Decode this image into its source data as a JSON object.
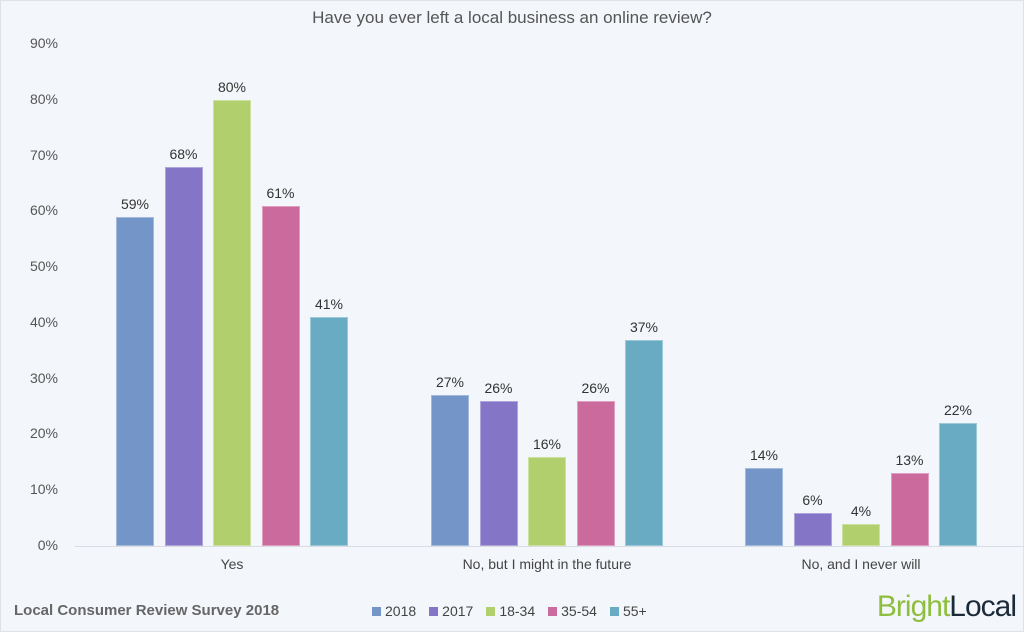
{
  "chart_data": {
    "type": "bar",
    "title": "Have you ever left a local business an online review?",
    "xlabel": "",
    "ylabel": "",
    "ylim": [
      0,
      90
    ],
    "yticks": [
      "0%",
      "10%",
      "20%",
      "30%",
      "40%",
      "50%",
      "60%",
      "70%",
      "80%",
      "90%"
    ],
    "grid": false,
    "legend_position": "bottom",
    "categories": [
      "Yes",
      "No, but I might in the future",
      "No, and I never will"
    ],
    "series": [
      {
        "name": "2018",
        "color": "#7395c8",
        "values": [
          59,
          27,
          14
        ]
      },
      {
        "name": "2017",
        "color": "#8575c6",
        "values": [
          68,
          26,
          6
        ]
      },
      {
        "name": "18-34",
        "color": "#b1cf6c",
        "values": [
          80,
          16,
          4
        ]
      },
      {
        "name": "35-54",
        "color": "#cb6a9d",
        "values": [
          61,
          26,
          13
        ]
      },
      {
        "name": "55+",
        "color": "#68abc3",
        "values": [
          41,
          37,
          22
        ]
      }
    ],
    "value_suffix": "%"
  },
  "footer": {
    "survey_label": "Local Consumer Review Survey 2018",
    "logo_part1": "Bright",
    "logo_part2": "Local"
  }
}
